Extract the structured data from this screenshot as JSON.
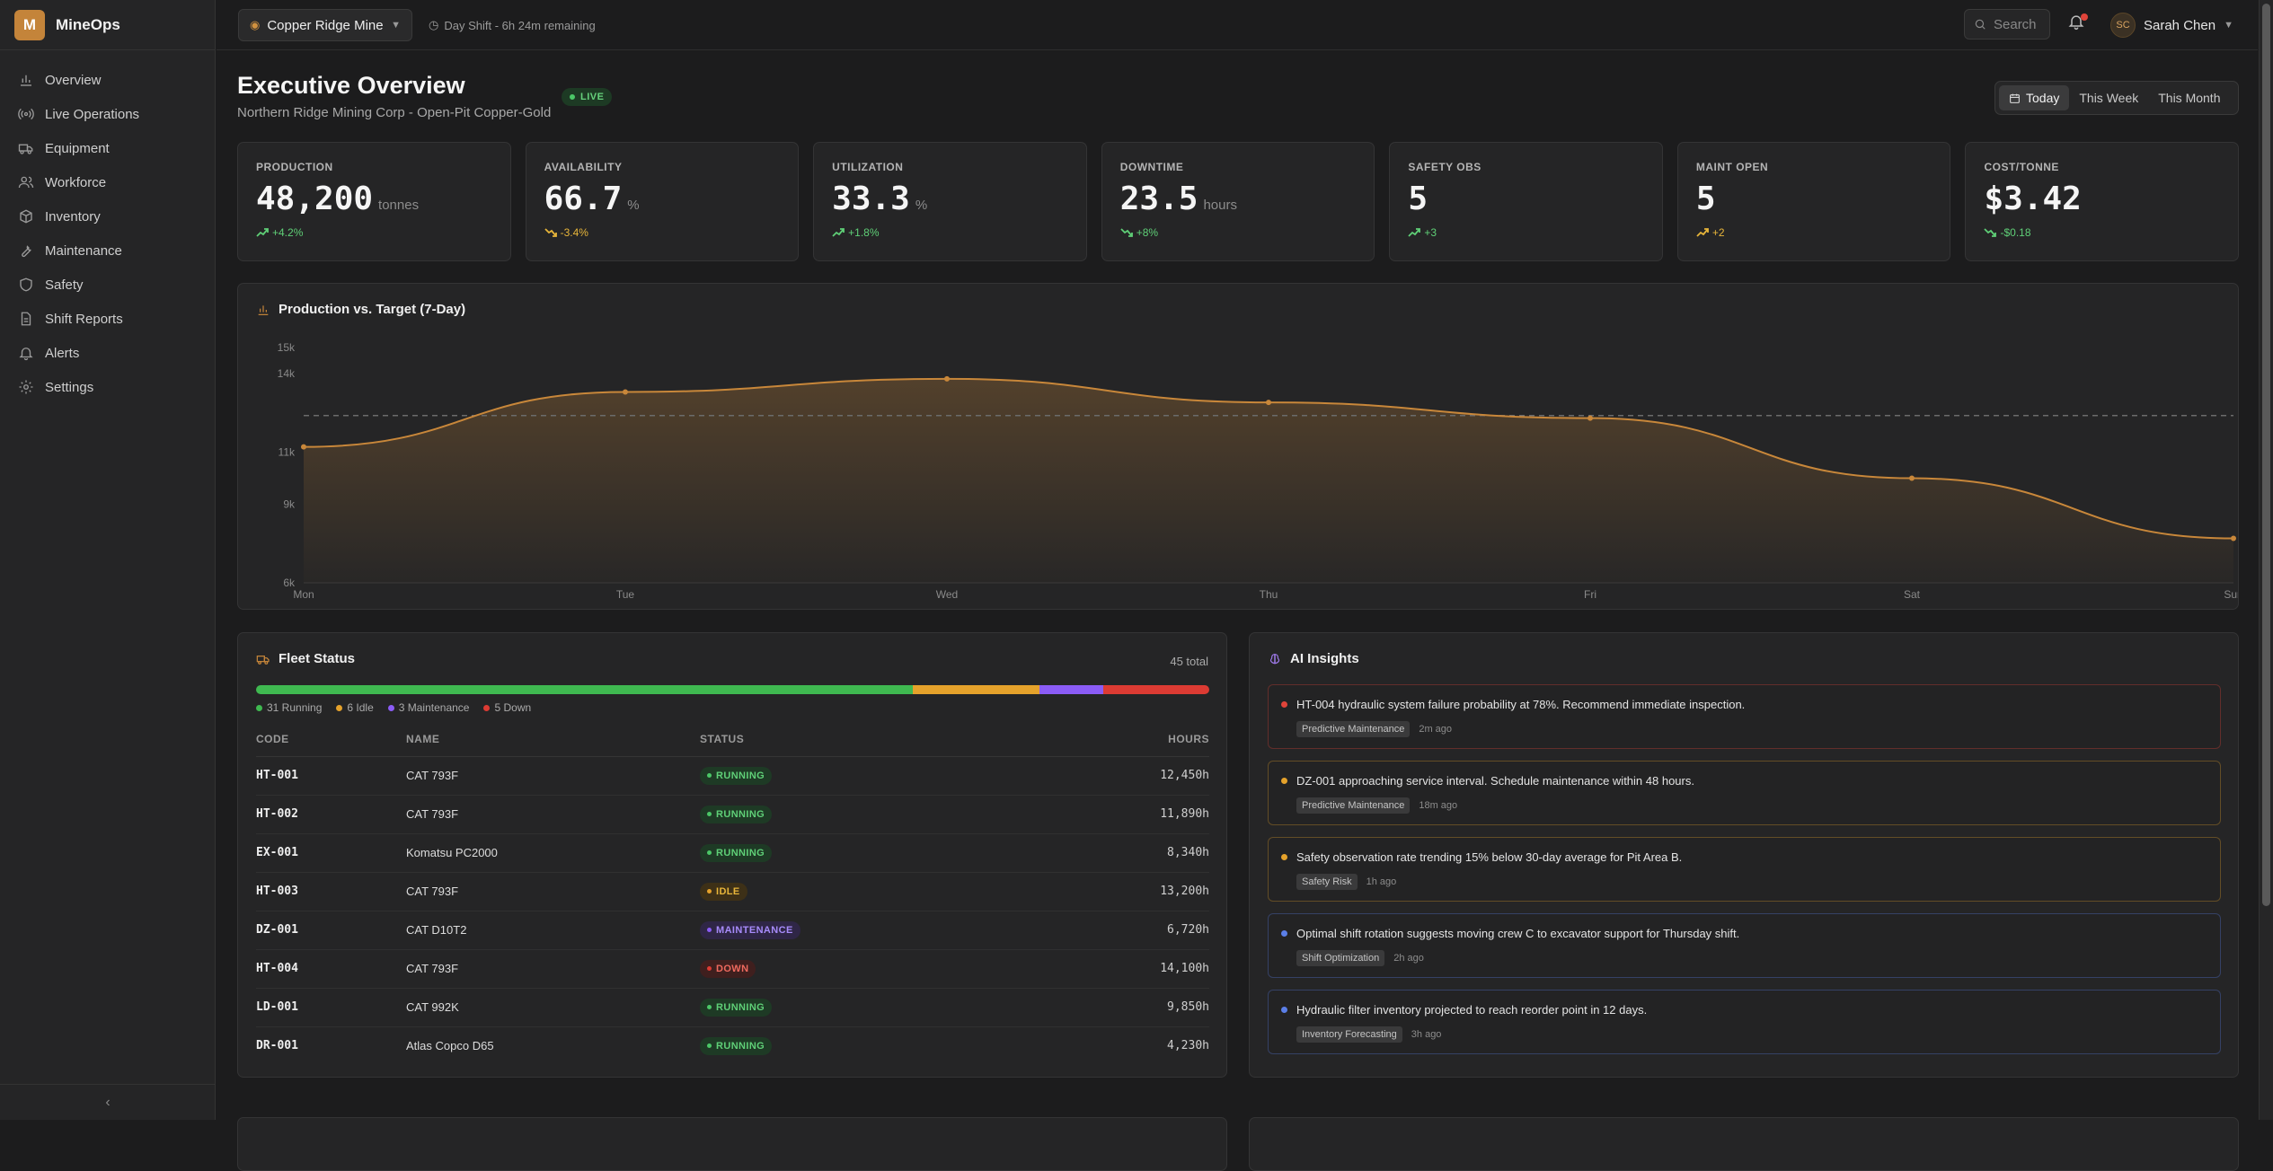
{
  "app": {
    "logo_letter": "M",
    "name": "MineOps"
  },
  "sidebar": {
    "items": [
      {
        "label": "Overview",
        "icon": "bar-chart-icon"
      },
      {
        "label": "Live Operations",
        "icon": "radio-icon"
      },
      {
        "label": "Equipment",
        "icon": "truck-icon"
      },
      {
        "label": "Workforce",
        "icon": "users-icon"
      },
      {
        "label": "Inventory",
        "icon": "package-icon"
      },
      {
        "label": "Maintenance",
        "icon": "wrench-icon"
      },
      {
        "label": "Safety",
        "icon": "shield-icon"
      },
      {
        "label": "Shift Reports",
        "icon": "file-icon"
      },
      {
        "label": "Alerts",
        "icon": "bell-icon"
      },
      {
        "label": "Settings",
        "icon": "gear-icon"
      }
    ],
    "collapse_glyph": "‹"
  },
  "topbar": {
    "site": "Copper Ridge Mine",
    "shift": "Day Shift - 6h 24m remaining",
    "search_placeholder": "Search",
    "user_initials": "SC",
    "user_name": "Sarah Chen"
  },
  "header": {
    "title": "Executive Overview",
    "live": "LIVE",
    "subtitle": "Northern Ridge Mining Corp - Open-Pit Copper-Gold",
    "ranges": [
      "Today",
      "This Week",
      "This Month"
    ],
    "active_range": "Today"
  },
  "kpis": [
    {
      "label": "PRODUCTION",
      "value": "48,200",
      "unit": "tonnes",
      "change": "+4.2%",
      "trend": "up",
      "tone": "up"
    },
    {
      "label": "AVAILABILITY",
      "value": "66.7",
      "unit": "%",
      "change": "-3.4%",
      "trend": "down",
      "tone": "warn"
    },
    {
      "label": "UTILIZATION",
      "value": "33.3",
      "unit": "%",
      "change": "+1.8%",
      "trend": "up",
      "tone": "up"
    },
    {
      "label": "DOWNTIME",
      "value": "23.5",
      "unit": "hours",
      "change": "+8%",
      "trend": "down",
      "tone": "up"
    },
    {
      "label": "SAFETY OBS",
      "value": "5",
      "unit": "",
      "change": "+3",
      "trend": "up",
      "tone": "up"
    },
    {
      "label": "MAINT OPEN",
      "value": "5",
      "unit": "",
      "change": "+2",
      "trend": "up",
      "tone": "warn"
    },
    {
      "label": "COST/TONNE",
      "value": "$3.42",
      "unit": "",
      "change": "-$0.18",
      "trend": "down",
      "tone": "up"
    }
  ],
  "chart_card": {
    "title": "Production vs. Target (7-Day)"
  },
  "chart_data": {
    "type": "area",
    "title": "Production vs. Target (7-Day)",
    "categories": [
      "Mon",
      "Tue",
      "Wed",
      "Thu",
      "Fri",
      "Sat",
      "Sun"
    ],
    "series": [
      {
        "values": [
          11200,
          13300,
          13800,
          12900,
          12300,
          10000,
          7700
        ]
      }
    ],
    "target": 12400,
    "ylim": [
      6000,
      15000
    ],
    "yticks": [
      6000,
      9000,
      11000,
      14000,
      15000
    ],
    "ytick_labels": [
      "6k",
      "9k",
      "11k",
      "14k",
      "15k"
    ],
    "colors": {
      "line": "#c8873a",
      "target": "#6b6b6b"
    }
  },
  "fleet": {
    "title": "Fleet Status",
    "total": "45 total",
    "segments": [
      {
        "label": "31 Running",
        "count": 31,
        "color": "#3fb950"
      },
      {
        "label": "6 Idle",
        "count": 6,
        "color": "#e5a22b"
      },
      {
        "label": "3 Maintenance",
        "count": 3,
        "color": "#8b5cf6"
      },
      {
        "label": "5 Down",
        "count": 5,
        "color": "#dc3b33"
      }
    ],
    "columns": [
      "CODE",
      "NAME",
      "STATUS",
      "HOURS"
    ],
    "rows": [
      {
        "code": "HT-001",
        "name": "CAT 793F",
        "status": "RUNNING",
        "hours": "12,450h"
      },
      {
        "code": "HT-002",
        "name": "CAT 793F",
        "status": "RUNNING",
        "hours": "11,890h"
      },
      {
        "code": "EX-001",
        "name": "Komatsu PC2000",
        "status": "RUNNING",
        "hours": "8,340h"
      },
      {
        "code": "HT-003",
        "name": "CAT 793F",
        "status": "IDLE",
        "hours": "13,200h"
      },
      {
        "code": "DZ-001",
        "name": "CAT D10T2",
        "status": "MAINTENANCE",
        "hours": "6,720h"
      },
      {
        "code": "HT-004",
        "name": "CAT 793F",
        "status": "DOWN",
        "hours": "14,100h"
      },
      {
        "code": "LD-001",
        "name": "CAT 992K",
        "status": "RUNNING",
        "hours": "9,850h"
      },
      {
        "code": "DR-001",
        "name": "Atlas Copco D65",
        "status": "RUNNING",
        "hours": "4,230h"
      }
    ]
  },
  "ai": {
    "title": "AI Insights",
    "items": [
      {
        "text": "HT-004 hydraulic system failure probability at 78%. Recommend immediate inspection.",
        "tag": "Predictive Maintenance",
        "time": "2m ago",
        "severity": "critical",
        "color": "#e0443a"
      },
      {
        "text": "DZ-001 approaching service interval. Schedule maintenance within 48 hours.",
        "tag": "Predictive Maintenance",
        "time": "18m ago",
        "severity": "warning",
        "color": "#e5a22b"
      },
      {
        "text": "Safety observation rate trending 15% below 30-day average for Pit Area B.",
        "tag": "Safety Risk",
        "time": "1h ago",
        "severity": "warning",
        "color": "#e5a22b"
      },
      {
        "text": "Optimal shift rotation suggests moving crew C to excavator support for Thursday shift.",
        "tag": "Shift Optimization",
        "time": "2h ago",
        "severity": "info",
        "color": "#5b7fe8"
      },
      {
        "text": "Hydraulic filter inventory projected to reach reorder point in 12 days.",
        "tag": "Inventory Forecasting",
        "time": "3h ago",
        "severity": "info",
        "color": "#5b7fe8"
      }
    ]
  },
  "status_colors": {
    "RUNNING": {
      "bg": "#1e3a25",
      "fg": "#5fcf77",
      "dot": "#4bc767"
    },
    "IDLE": {
      "bg": "#3d3017",
      "fg": "#e7b53a",
      "dot": "#e5a22b"
    },
    "MAINTENANCE": {
      "bg": "#2f2646",
      "fg": "#a78bfa",
      "dot": "#8b5cf6"
    },
    "DOWN": {
      "bg": "#3f1f1e",
      "fg": "#ef6a5f",
      "dot": "#dc3b33"
    }
  }
}
